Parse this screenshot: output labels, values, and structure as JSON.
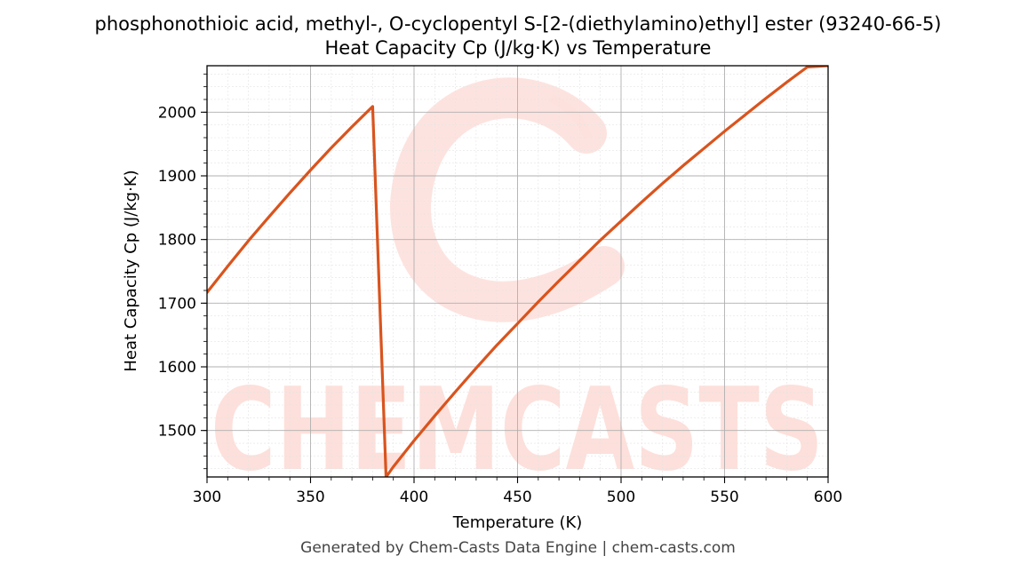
{
  "title": "phosphonothioic acid, methyl-, O-cyclopentyl S-[2-(diethylamino)ethyl] ester (93240-66-5)",
  "subtitle": "Heat Capacity Cp (J/kg·K) vs Temperature",
  "footer": "Generated by Chem-Casts Data Engine | chem-casts.com",
  "watermark": "CHEMCASTS",
  "colors": {
    "line": "#d9541e",
    "watermark": "#fde0db",
    "grid_major": "#b0b0b0",
    "grid_minor": "#e4e4e4"
  },
  "chart_data": {
    "type": "line",
    "title": "Heat Capacity Cp (J/kg·K) vs Temperature",
    "xlabel": "Temperature (K)",
    "ylabel": "Heat Capacity Cp (J/kg·K)",
    "xlim": [
      300,
      600
    ],
    "ylim": [
      1427,
      2073
    ],
    "grid": true,
    "legend": "none",
    "xticks": [
      300,
      350,
      400,
      450,
      500,
      550,
      600
    ],
    "yticks": [
      1500,
      1600,
      1700,
      1800,
      1900,
      2000
    ],
    "series": [
      {
        "name": "",
        "x": [
          300,
          310,
          320,
          330,
          340,
          350,
          360,
          370,
          380,
          386.5,
          390,
          400,
          410,
          420,
          430,
          440,
          450,
          460,
          470,
          480,
          490,
          500,
          510,
          520,
          530,
          540,
          550,
          560,
          570,
          580,
          590,
          600
        ],
        "y": [
          1717,
          1758,
          1798,
          1836,
          1873,
          1909,
          1944,
          1977,
          2009,
          1427,
          1443,
          1484,
          1523,
          1561,
          1598,
          1634,
          1668,
          1702,
          1735,
          1767,
          1799,
          1829,
          1859,
          1888,
          1916,
          1943,
          1970,
          1996,
          2022,
          2047,
          2071,
          2073
        ]
      }
    ]
  }
}
